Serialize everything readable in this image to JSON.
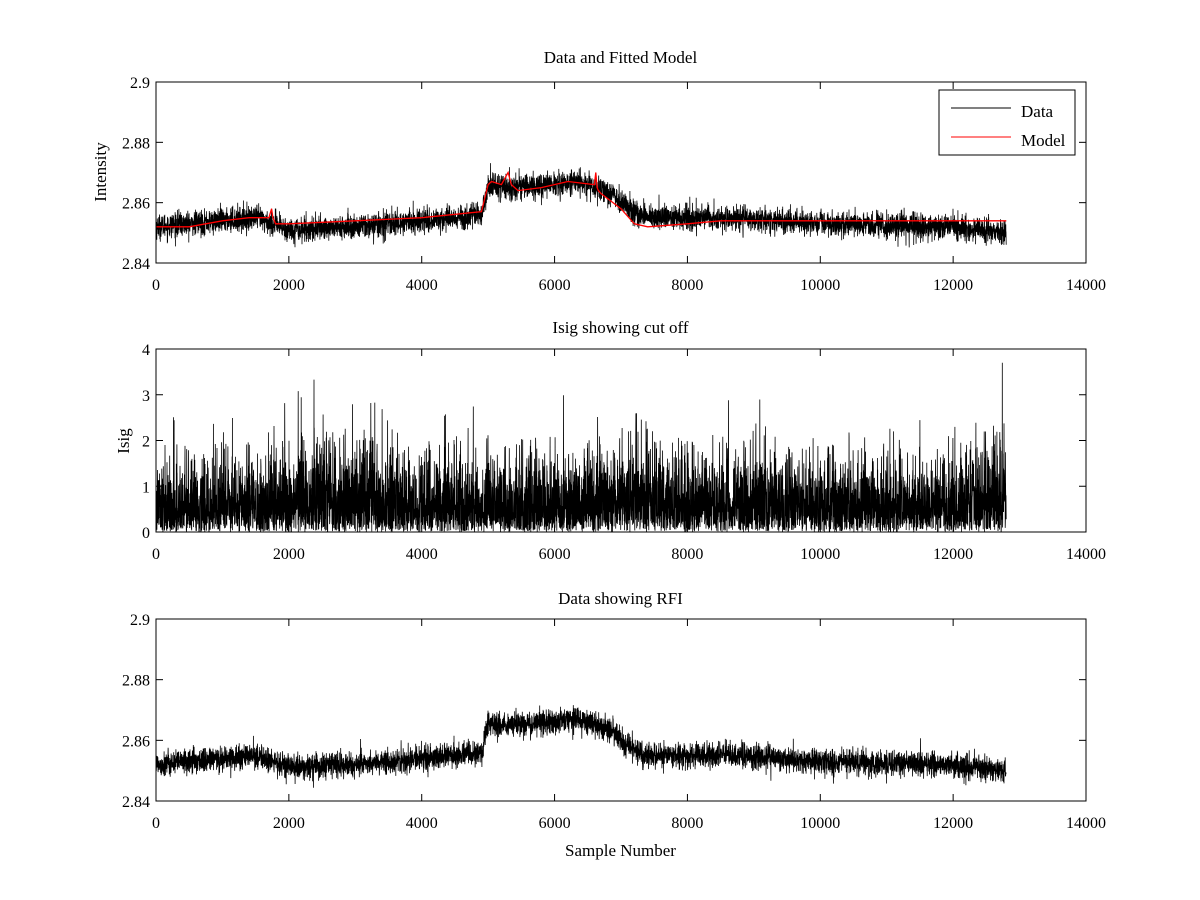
{
  "figure": {
    "xlabel_bottom": "Sample Number"
  },
  "chart_data": [
    {
      "type": "line",
      "title": "Data and Fitted Model",
      "ylabel": "Intensity",
      "xlabel": "",
      "xlim": [
        0,
        14000
      ],
      "ylim": [
        2.84,
        2.9
      ],
      "xticks": [
        0,
        2000,
        4000,
        6000,
        8000,
        10000,
        12000,
        14000
      ],
      "yticks": [
        2.84,
        2.86,
        2.88,
        2.9
      ],
      "ytick_labels": [
        "2.84",
        "2.86",
        "2.88",
        "2.9"
      ],
      "legend": {
        "position": "top-right",
        "entries": [
          "Data",
          "Model"
        ]
      },
      "colors": {
        "Data": "#000000",
        "Model": "#ff0000"
      },
      "series": [
        {
          "name": "Data",
          "style": "noisy",
          "n_points": 12800,
          "noise_amplitude": 0.0045,
          "baseline_x": [
            0,
            1000,
            1500,
            2000,
            3000,
            4000,
            4900,
            5000,
            5200,
            6000,
            6300,
            6800,
            7200,
            7400,
            8000,
            8700,
            10000,
            12000,
            12800
          ],
          "baseline_y": [
            2.852,
            2.854,
            2.855,
            2.851,
            2.852,
            2.854,
            2.856,
            2.866,
            2.865,
            2.866,
            2.867,
            2.864,
            2.857,
            2.855,
            2.855,
            2.855,
            2.853,
            2.852,
            2.85
          ]
        },
        {
          "name": "Model",
          "style": "smooth",
          "x": [
            0,
            500,
            1000,
            1400,
            1700,
            1740,
            1760,
            1800,
            2000,
            3000,
            4000,
            4900,
            5000,
            5050,
            5200,
            5300,
            5350,
            5450,
            5800,
            6200,
            6600,
            6620,
            6640,
            6660,
            6700,
            7000,
            7200,
            7400,
            8000,
            8500,
            9000,
            10000,
            11000,
            12000,
            12800
          ],
          "y": [
            2.852,
            2.852,
            2.854,
            2.855,
            2.855,
            2.858,
            2.855,
            2.853,
            2.853,
            2.854,
            2.855,
            2.857,
            2.866,
            2.867,
            2.866,
            2.87,
            2.866,
            2.864,
            2.865,
            2.867,
            2.866,
            2.87,
            2.865,
            2.864,
            2.863,
            2.858,
            2.853,
            2.852,
            2.853,
            2.854,
            2.854,
            2.854,
            2.854,
            2.854,
            2.854
          ]
        }
      ]
    },
    {
      "type": "line",
      "title": "Isig showing cut off",
      "ylabel": "Isig",
      "xlabel": "",
      "xlim": [
        0,
        14000
      ],
      "ylim": [
        0,
        4
      ],
      "xticks": [
        0,
        2000,
        4000,
        6000,
        8000,
        10000,
        12000,
        14000
      ],
      "yticks": [
        0,
        1,
        2,
        3,
        4
      ],
      "ytick_labels": [
        "0",
        "1",
        "2",
        "3",
        "4"
      ],
      "colors": {
        "Isig": "#000000"
      },
      "series": [
        {
          "name": "Isig",
          "style": "abs-noise",
          "n_points": 12800,
          "scale_x": [
            0,
            2000,
            2700,
            3500,
            4500,
            5000,
            6000,
            7000,
            8000,
            10000,
            12000,
            12800
          ],
          "scale_y": [
            0.75,
            0.8,
            1.0,
            0.85,
            0.75,
            0.8,
            0.8,
            0.9,
            0.85,
            0.8,
            0.75,
            0.95
          ],
          "peak_x": 12740,
          "peak_y": 3.7
        }
      ]
    },
    {
      "type": "line",
      "title": "Data showing RFI",
      "ylabel": "",
      "xlabel": "Sample Number",
      "xlim": [
        0,
        14000
      ],
      "ylim": [
        2.84,
        2.9
      ],
      "xticks": [
        0,
        2000,
        4000,
        6000,
        8000,
        10000,
        12000,
        14000
      ],
      "yticks": [
        2.84,
        2.86,
        2.88,
        2.9
      ],
      "ytick_labels": [
        "2.84",
        "2.86",
        "2.88",
        "2.9"
      ],
      "colors": {
        "Data": "#000000"
      },
      "series": [
        {
          "name": "Data",
          "style": "noisy",
          "n_points": 12800,
          "noise_amplitude": 0.0045,
          "baseline_x": [
            0,
            1000,
            1500,
            2000,
            3000,
            4000,
            4900,
            5000,
            5200,
            6000,
            6300,
            6800,
            7200,
            7400,
            8000,
            8700,
            10000,
            12000,
            12800
          ],
          "baseline_y": [
            2.852,
            2.854,
            2.855,
            2.851,
            2.852,
            2.854,
            2.856,
            2.866,
            2.865,
            2.866,
            2.867,
            2.864,
            2.857,
            2.855,
            2.855,
            2.855,
            2.853,
            2.852,
            2.85
          ]
        }
      ]
    }
  ]
}
